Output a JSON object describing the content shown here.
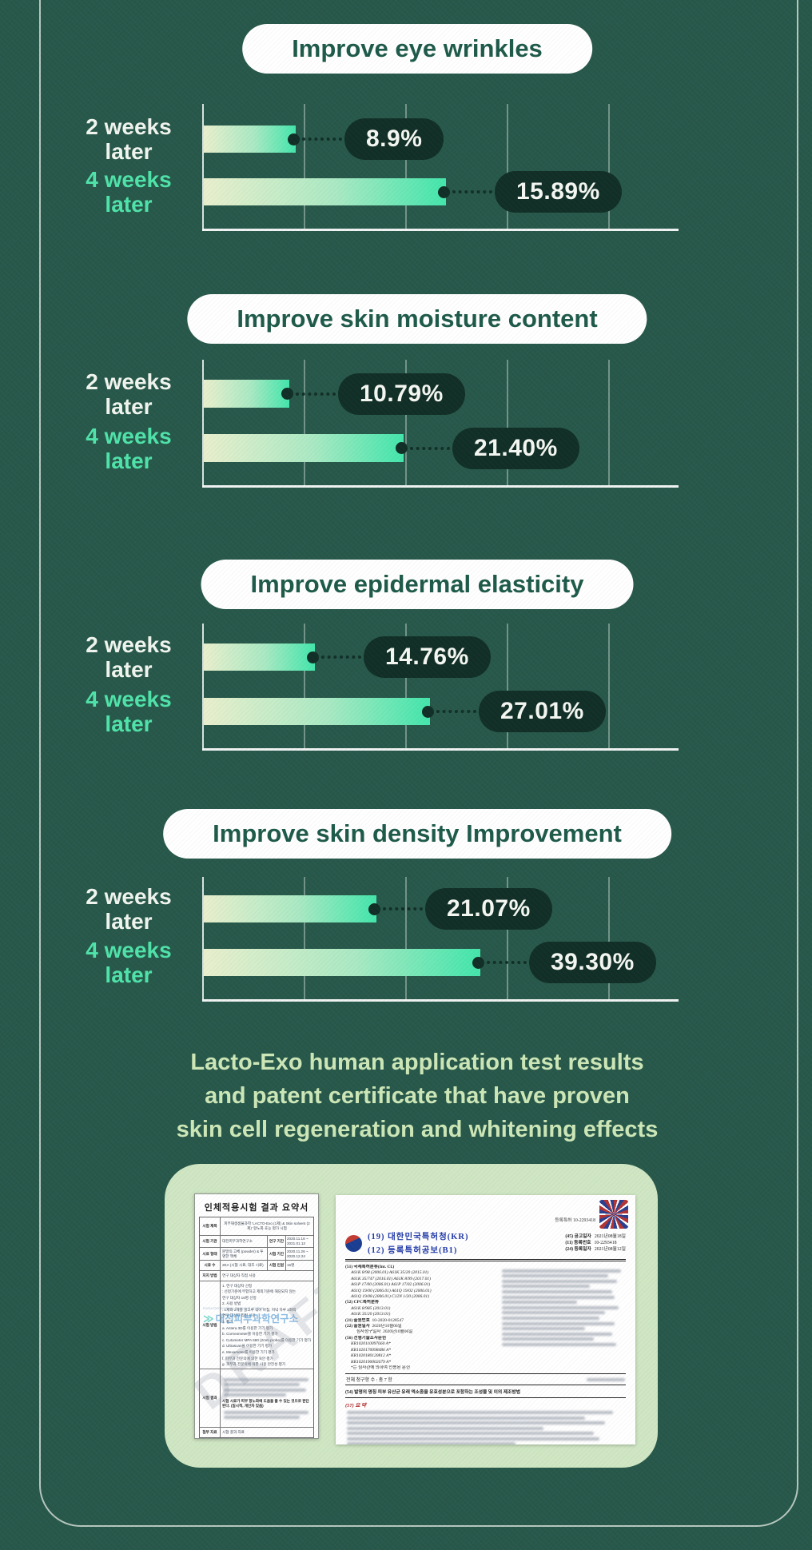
{
  "chart_data": [
    {
      "type": "bar",
      "orientation": "horizontal",
      "title": "Improve eye wrinkles",
      "categories": [
        "2 weeks later",
        "4 weeks later"
      ],
      "values": [
        8.9,
        15.89
      ],
      "value_labels": [
        "8.9%",
        "15.89%"
      ],
      "unit": "%",
      "xlim": [
        0,
        31
      ],
      "grid": "vertical",
      "legend": false,
      "bar_frac": [
        0.193,
        0.508
      ]
    },
    {
      "type": "bar",
      "orientation": "horizontal",
      "title": "Improve skin moisture content",
      "categories": [
        "2 weeks later",
        "4 weeks later"
      ],
      "values": [
        10.79,
        21.4
      ],
      "value_labels": [
        "10.79%",
        "21.40%"
      ],
      "unit": "%",
      "xlim": [
        0,
        51
      ],
      "grid": "vertical",
      "legend": false,
      "bar_frac": [
        0.18,
        0.42
      ]
    },
    {
      "type": "bar",
      "orientation": "horizontal",
      "title": "Improve epidermal elasticity",
      "categories": [
        "2 weeks later",
        "4 weeks later"
      ],
      "values": [
        14.76,
        27.01
      ],
      "value_labels": [
        "14.76%",
        "27.01%"
      ],
      "unit": "%",
      "xlim": [
        0,
        57
      ],
      "grid": "vertical",
      "legend": false,
      "bar_frac": [
        0.234,
        0.474
      ]
    },
    {
      "type": "bar",
      "orientation": "horizontal",
      "title": "Improve skin density Improvement",
      "categories": [
        "2 weeks later",
        "4 weeks later"
      ],
      "values": [
        21.07,
        39.3
      ],
      "value_labels": [
        "21.07%",
        "39.30%"
      ],
      "unit": "%",
      "xlim": [
        0,
        68
      ],
      "grid": "vertical",
      "legend": false,
      "bar_frac": [
        0.363,
        0.58
      ]
    }
  ],
  "cats": {
    "w2": [
      "2 weeks",
      "later"
    ],
    "w4": [
      "4 weeks",
      "later"
    ]
  },
  "heading": {
    "line1": "Lacto-Exo human application test results",
    "line2": "and patent certificate that have proven",
    "line3": "skin cell regeneration and whitening effects"
  },
  "colors": {
    "background": "#27584a",
    "bar_gradient_start": "#e9efcd",
    "bar_gradient_end": "#43e6ac",
    "badge": "#112f27",
    "mint_label": "#4fe3aa",
    "heading_text": "#cde7b7",
    "card": "#cfe6c3",
    "pill_text": "#1e5a49"
  },
  "docs": {
    "summary": {
      "title": "인체적용시험 결과 요약서",
      "rows": {
        "r1_label": "시험 제목",
        "r1_value": "피부재생샘물과학 'LACTO-Exo (1제) & Skin solvent (2제)' 항노화 효능 평가 시험",
        "r2_label": "시험 기관",
        "r2_value": "대전피부과학연구소",
        "r2_label2": "연구 기간",
        "r2_value2": "2020.11.16 ~ 2021.01.13",
        "r3_label": "시료 형태",
        "r3_value": "분말의 고체 (powder) & 투명한 액체",
        "r3_label2": "시험 기간",
        "r3_value2": "2020.11.26 ~ 2020.12.24",
        "r4_label": "시료 수",
        "r4_value": "2EA (시험 시료, 대조 시료)",
        "r4_label2": "시험 인원",
        "r4_value2": "16명",
        "r5_label": "지지 방법",
        "r5_value": "연구 대상자 직접 사용",
        "r6_label": "시험 방법",
        "r6_sub": "세부 시험 방법",
        "r7_label": "시험 결과",
        "r8_label": "첨부 자료",
        "r8_value": "시험 결과 자료"
      },
      "method_lines": [
        "1. 연구 대상자 선정",
        ": 선정기준에 부합하고 제외기준에 해당되지 않는",
        "  연구 대상자 16명 선정",
        "2. 사용 방법",
        ": 1제와 2제를 골고루 섞어 아침, 저녁 하루 2회씩",
        "  연구 대상자 직접 사용",
        "3. 평가",
        "a. Antera 3D를 이용한 기기 평가",
        "b. Corneometer를 이용한 기기 평가",
        "c. Cutometer MPA 580 (2mm probe)를 이용한 기기 평가",
        "d. Ultrascan을 이용한 기기 평가",
        "e. Mexameter를 이용한 기기 평가",
        "f. 피부과 전문의에 의한 육안 평가",
        "g. 피부과 전문의에 의한 사용 안전성 평가"
      ],
      "result_highlight": "시험 시료가 피부 항노화에 도움을 줄 수 있는 것으로 판단된다. (일시적, 개인차 있음)",
      "watermark": "DRAFT",
      "logo_en": "Korea Dermatology Research Institute",
      "logo_text": "대전피부과학연구소"
    },
    "patent": {
      "stamp_caption": "등록특허 10-2293418",
      "office": "(19) 대한민국특허청(KR)",
      "doc_type": "(12) 등록특허공보(B1)",
      "pub_date_label": "(45) 공고일자",
      "pub_date": "2021년08월18일",
      "reg_no_label": "(11) 등록번호",
      "reg_no": "10-2293418",
      "reg_date_label": "(24) 등록일자",
      "reg_date": "2021년08월12일",
      "ipc_label": "(51) 국제특허분류(Int. Cl.)",
      "ipc_lines": [
        "A61K 8/98 (2006.01)   A61K 35/20 (2015.01)",
        "A61K 35/747 (2016.01)   A61K 8/99 (2017.01)",
        "A61P 17/00 (2006.01)   A61P 17/02 (2006.01)",
        "A61Q 19/00 (2006.01)   A61Q 19/02 (2006.01)",
        "A61Q 19/08 (2006.01)   C12N 1/20 (2006.01)"
      ],
      "cpc_label": "(52) CPC특허분류",
      "cpc_lines": [
        "A61K 8/985 (2013.01)",
        "A61K 35/20 (2013.01)"
      ],
      "app_no_label": "(21) 출원번호",
      "app_no": "10-2020-0128547",
      "app_date_label": "(22) 출원일자",
      "app_date": "2020년10월06일",
      "exam_label": "심사청구일자",
      "exam_date": "2020년10월06일",
      "prior_label": "(56) 선행기술조사문헌",
      "prior_lines": [
        "KR1020110097660 A*",
        "KR1020170098486 A*",
        "KR1020180120812 A*",
        "KR1020190002679 A*"
      ],
      "prior_note": "*는 심사관에 의하여 인용된 문헌",
      "claims": "전체 청구항 수 : 총 7 항",
      "title54": "(54) 발명의 명칭 피부 유산균 유래 엑소좀을 유효성분으로 포함하는 조성물 및 이의 제조방법",
      "abstract_label": "(57) 요 약"
    }
  }
}
